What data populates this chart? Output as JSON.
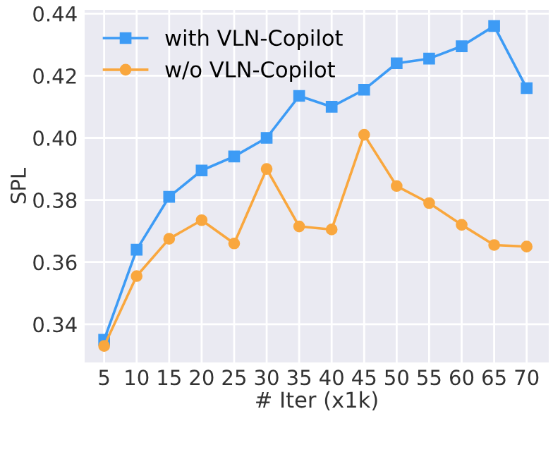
{
  "chart_data": {
    "type": "line",
    "xlabel": "# Iter (x1k)",
    "ylabel": "SPL",
    "x": [
      5,
      10,
      15,
      20,
      25,
      30,
      35,
      40,
      45,
      50,
      55,
      60,
      65,
      70
    ],
    "series": [
      {
        "name": "with VLN-Copilot",
        "color": "#3d9bf5",
        "marker": "square",
        "values": [
          0.335,
          0.364,
          0.381,
          0.3895,
          0.394,
          0.4,
          0.4135,
          0.41,
          0.4155,
          0.424,
          0.4255,
          0.4295,
          0.436,
          0.416
        ]
      },
      {
        "name": "w/o VLN-Copilot",
        "color": "#f9a73e",
        "marker": "circle",
        "values": [
          0.333,
          0.3555,
          0.3675,
          0.3735,
          0.366,
          0.39,
          0.3715,
          0.3705,
          0.401,
          0.3845,
          0.379,
          0.372,
          0.3655,
          0.365
        ]
      }
    ],
    "xlim": [
      2,
      73.4
    ],
    "ylim": [
      0.3277,
      0.4412
    ],
    "xticks": [
      5,
      10,
      15,
      20,
      25,
      30,
      35,
      40,
      45,
      50,
      55,
      60,
      65,
      70
    ],
    "yticks": [
      {
        "value": 0.34,
        "label": "0.34"
      },
      {
        "value": 0.36,
        "label": "0.36"
      },
      {
        "value": 0.38,
        "label": "0.38"
      },
      {
        "value": 0.4,
        "label": "0.40"
      },
      {
        "value": 0.42,
        "label": "0.42"
      },
      {
        "value": 0.44,
        "label": "0.44"
      }
    ],
    "grid": true,
    "legend": "top left",
    "line_style": "solid"
  }
}
